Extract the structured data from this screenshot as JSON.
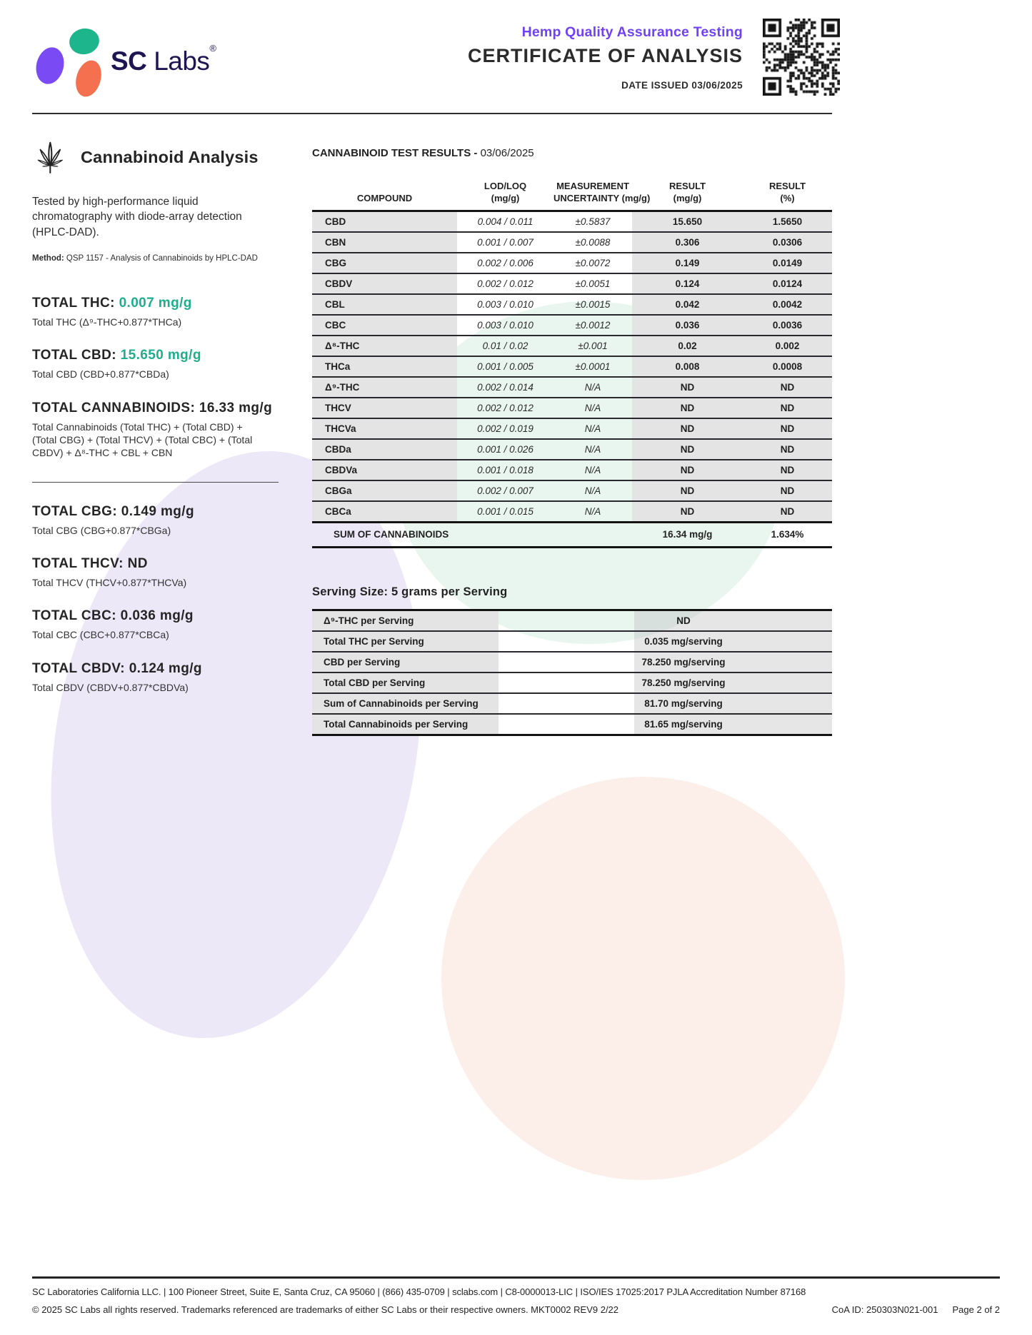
{
  "brand": {
    "sc": "SC",
    "labs": "Labs",
    "reg": "®"
  },
  "header": {
    "subtitle": "Hemp Quality Assurance Testing",
    "title": "CERTIFICATE OF ANALYSIS",
    "date_issued": "DATE ISSUED 03/06/2025"
  },
  "section": {
    "title": "Cannabinoid Analysis",
    "description": "Tested by high-performance liquid chromatography with diode-array detection (HPLC-DAD).",
    "method_label": "Method:",
    "method": "QSP 1157 - Analysis of Cannabinoids by HPLC-DAD"
  },
  "totals": [
    {
      "label": "TOTAL THC:",
      "value": "0.007 mg/g",
      "accent": true,
      "formula": "Total THC (Δ⁹-THC+0.877*THCa)"
    },
    {
      "label": "TOTAL CBD:",
      "value": "15.650 mg/g",
      "accent": true,
      "formula": "Total CBD (CBD+0.877*CBDa)"
    },
    {
      "label": "TOTAL CANNABINOIDS:",
      "value": "16.33 mg/g",
      "accent": false,
      "formula": "Total Cannabinoids (Total THC) + (Total CBD) + (Total CBG) + (Total THCV) + (Total CBC) + (Total CBDV) + Δ⁸-THC + CBL + CBN",
      "divider_after": true
    },
    {
      "label": "TOTAL CBG:",
      "value": "0.149 mg/g",
      "accent": false,
      "formula": "Total CBG (CBG+0.877*CBGa)"
    },
    {
      "label": "TOTAL THCV:",
      "value": "ND",
      "accent": false,
      "formula": "Total THCV (THCV+0.877*THCVa)"
    },
    {
      "label": "TOTAL CBC:",
      "value": "0.036 mg/g",
      "accent": false,
      "formula": "Total CBC (CBC+0.877*CBCa)"
    },
    {
      "label": "TOTAL CBDV:",
      "value": "0.124 mg/g",
      "accent": false,
      "formula": "Total CBDV (CBDV+0.877*CBDVa)"
    }
  ],
  "results": {
    "title_bold": "CANNABINOID TEST RESULTS -",
    "title_date": "03/06/2025",
    "columns": [
      [
        "COMPOUND",
        ""
      ],
      [
        "LOD/LOQ",
        "(mg/g)"
      ],
      [
        "MEASUREMENT",
        "UNCERTAINTY (mg/g)"
      ],
      [
        "RESULT",
        "(mg/g)"
      ],
      [
        "RESULT",
        "(%)"
      ]
    ],
    "rows": [
      [
        "CBD",
        "0.004 / 0.011",
        "±0.5837",
        "15.650",
        "1.5650"
      ],
      [
        "CBN",
        "0.001 / 0.007",
        "±0.0088",
        "0.306",
        "0.0306"
      ],
      [
        "CBG",
        "0.002 / 0.006",
        "±0.0072",
        "0.149",
        "0.0149"
      ],
      [
        "CBDV",
        "0.002 / 0.012",
        "±0.0051",
        "0.124",
        "0.0124"
      ],
      [
        "CBL",
        "0.003 / 0.010",
        "±0.0015",
        "0.042",
        "0.0042"
      ],
      [
        "CBC",
        "0.003 / 0.010",
        "±0.0012",
        "0.036",
        "0.0036"
      ],
      [
        "Δ⁸-THC",
        "0.01 / 0.02",
        "±0.001",
        "0.02",
        "0.002"
      ],
      [
        "THCa",
        "0.001 / 0.005",
        "±0.0001",
        "0.008",
        "0.0008"
      ],
      [
        "Δ⁹-THC",
        "0.002 / 0.014",
        "N/A",
        "ND",
        "ND"
      ],
      [
        "THCV",
        "0.002 / 0.012",
        "N/A",
        "ND",
        "ND"
      ],
      [
        "THCVa",
        "0.002 / 0.019",
        "N/A",
        "ND",
        "ND"
      ],
      [
        "CBDa",
        "0.001 / 0.026",
        "N/A",
        "ND",
        "ND"
      ],
      [
        "CBDVa",
        "0.001 / 0.018",
        "N/A",
        "ND",
        "ND"
      ],
      [
        "CBGa",
        "0.002 / 0.007",
        "N/A",
        "ND",
        "ND"
      ],
      [
        "CBCa",
        "0.001 / 0.015",
        "N/A",
        "ND",
        "ND"
      ]
    ],
    "sum_label": "SUM OF CANNABINOIDS",
    "sum_mg": "16.34 mg/g",
    "sum_pct": "1.634%"
  },
  "serving": {
    "heading": "Serving Size: 5 grams per Serving",
    "rows": [
      [
        "Δ⁹-THC per Serving",
        "ND"
      ],
      [
        "Total THC per Serving",
        "0.035 mg/serving"
      ],
      [
        "CBD per Serving",
        "78.250 mg/serving"
      ],
      [
        "Total CBD per Serving",
        "78.250 mg/serving"
      ],
      [
        "Sum of Cannabinoids per Serving",
        "81.70 mg/serving"
      ],
      [
        "Total Cannabinoids per Serving",
        "81.65 mg/serving"
      ]
    ]
  },
  "footer": {
    "line1": "SC Laboratories California LLC. | 100 Pioneer Street, Suite E, Santa Cruz, CA 95060 | (866) 435-0709 | sclabs.com | C8-0000013-LIC | ISO/IES 17025:2017 PJLA Accreditation Number 87168",
    "line2": "© 2025 SC Labs all rights reserved. Trademarks referenced are trademarks of either SC Labs or their respective owners. MKT0002 REV9 2/22",
    "coa_id": "CoA ID: 250303N021-001",
    "page": "Page 2 of 2"
  },
  "colors": {
    "accent_teal": "#1FAE8C",
    "header_purple": "#6F42F5",
    "logo_navy": "#1D1653",
    "logo_green": "#1CB58C",
    "logo_purple": "#7A4BF5",
    "logo_orange": "#F4704F"
  }
}
